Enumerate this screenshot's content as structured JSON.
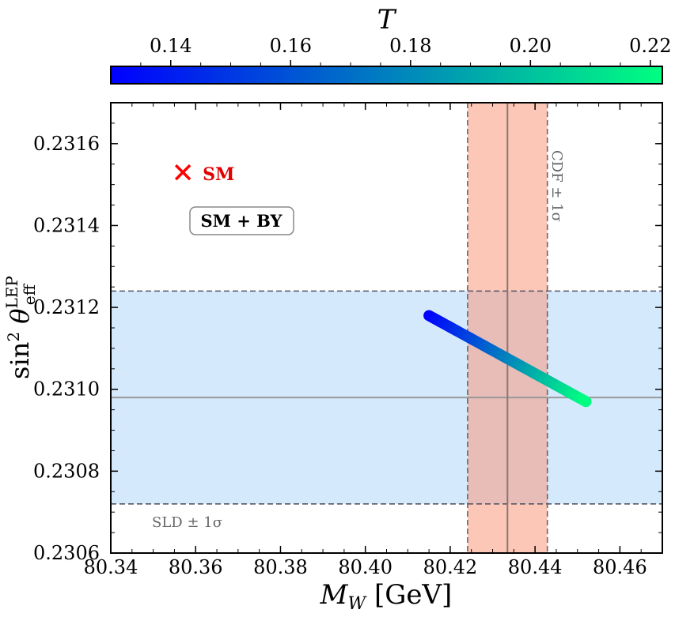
{
  "chart_data": {
    "type": "scatter",
    "xlabel_main": "M",
    "xlabel_sub": "W",
    "xlabel_unit": "[GeV]",
    "ylabel_main": "sin",
    "ylabel_sup": "2",
    "ylabel_theta": "θ",
    "ylabel_theta_sub": "eff",
    "ylabel_theta_sup": "LEP",
    "xlim": [
      80.34,
      80.47
    ],
    "ylim": [
      0.2306,
      0.2317
    ],
    "xticks": [
      "80.34",
      "80.36",
      "80.38",
      "80.40",
      "80.42",
      "80.44",
      "80.46"
    ],
    "yticks": [
      "0.2306",
      "0.2308",
      "0.2310",
      "0.2312",
      "0.2314",
      "0.2316"
    ],
    "colorbar": {
      "label": "T",
      "range": [
        0.13,
        0.222
      ],
      "ticks": [
        "0.14",
        "0.16",
        "0.18",
        "0.20",
        "0.22"
      ],
      "colormap": [
        "#0000ff",
        "#00ff80"
      ]
    },
    "sm_point": {
      "x": 80.357,
      "y": 0.23153,
      "label": "SM",
      "color": "#ff0000"
    },
    "annotation": "SM + BY",
    "cdf_band": {
      "center": 80.4335,
      "sigma": 0.0094,
      "label": "CDF ± 1σ",
      "color": "#fdbaa5"
    },
    "sld_band": {
      "center": 0.23098,
      "sigma": 0.00026,
      "label": "SLD ± 1σ",
      "color": "#d4e9fc"
    },
    "series": [
      {
        "x_start": 80.415,
        "y_start": 0.23118,
        "T_start": 0.13,
        "x_end": 80.452,
        "y_end": 0.23097,
        "T_end": 0.222
      }
    ]
  }
}
